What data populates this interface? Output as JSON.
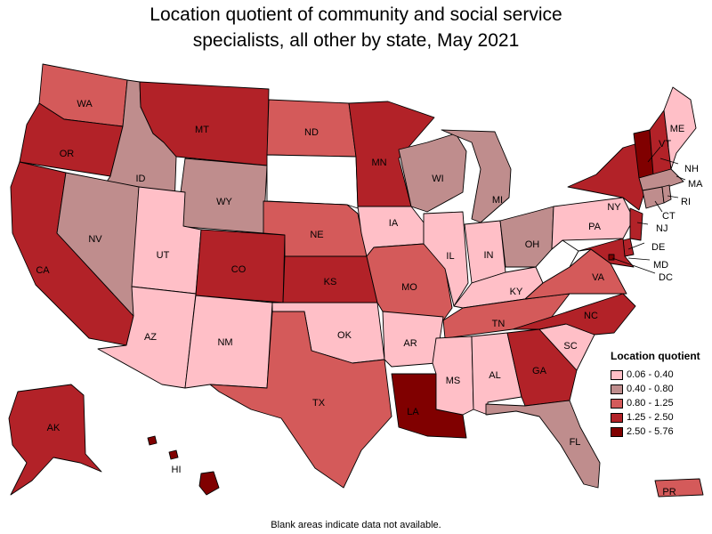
{
  "title_line1": "Location quotient of community and social service",
  "title_line2": "specialists, all other by state, May 2021",
  "legend": {
    "title": "Location quotient",
    "bins": [
      {
        "label": "0.06 - 0.40",
        "color": "#ffbfc7"
      },
      {
        "label": "0.40 - 0.80",
        "color": "#bf8d8d"
      },
      {
        "label": "0.80 - 1.25",
        "color": "#d45a5a"
      },
      {
        "label": "1.25 - 2.50",
        "color": "#b22228"
      },
      {
        "label": "2.50 - 5.76",
        "color": "#800000"
      }
    ]
  },
  "footnote": "Blank areas indicate data not available.",
  "states": {
    "WA": "0.80 - 1.25",
    "OR": "1.25 - 2.50",
    "CA": "1.25 - 2.50",
    "ID": "0.40 - 0.80",
    "NV": "0.40 - 0.80",
    "MT": "1.25 - 2.50",
    "WY": "0.40 - 0.80",
    "UT": "0.06 - 0.40",
    "AZ": "0.06 - 0.40",
    "CO": "1.25 - 2.50",
    "NM": "0.06 - 0.40",
    "ND": "0.80 - 1.25",
    "SD": "",
    "NE": "0.80 - 1.25",
    "KS": "1.25 - 2.50",
    "OK": "0.06 - 0.40",
    "TX": "0.80 - 1.25",
    "MN": "1.25 - 2.50",
    "IA": "0.06 - 0.40",
    "MO": "0.80 - 1.25",
    "AR": "0.06 - 0.40",
    "LA": "2.50 - 5.76",
    "WI": "0.40 - 0.80",
    "IL": "0.06 - 0.40",
    "MI": "0.40 - 0.80",
    "IN": "0.06 - 0.40",
    "OH": "0.40 - 0.80",
    "KY": "0.06 - 0.40",
    "TN": "0.80 - 1.25",
    "MS": "0.06 - 0.40",
    "AL": "0.06 - 0.40",
    "GA": "1.25 - 2.50",
    "FL": "0.40 - 0.80",
    "SC": "0.06 - 0.40",
    "NC": "1.25 - 2.50",
    "VA": "0.80 - 1.25",
    "WV": "",
    "PA": "0.06 - 0.40",
    "NY": "1.25 - 2.50",
    "ME": "0.06 - 0.40",
    "VT": "2.50 - 5.76",
    "NH": "1.25 - 2.50",
    "MA": "0.40 - 0.80",
    "CT": "0.40 - 0.80",
    "RI": "0.40 - 0.80",
    "NJ": "1.25 - 2.50",
    "DE": "1.25 - 2.50",
    "MD": "1.25 - 2.50",
    "DC": "2.50 - 5.76",
    "AK": "1.25 - 2.50",
    "HI": "2.50 - 5.76",
    "PR": "0.80 - 1.25"
  }
}
